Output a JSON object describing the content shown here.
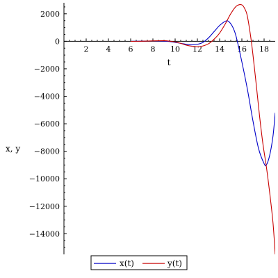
{
  "chart_data": {
    "type": "line",
    "title": "",
    "xlabel": "t",
    "ylabel": "x, y",
    "xlim": [
      0,
      19
    ],
    "ylim": [
      -15500,
      2800
    ],
    "x_ticks": [
      2,
      4,
      6,
      8,
      10,
      12,
      14,
      16,
      18
    ],
    "y_ticks": [
      2000,
      0,
      -2000,
      -4000,
      -6000,
      -8000,
      -10000,
      -12000,
      -14000
    ],
    "grid": false,
    "legend_position": "bottom-left",
    "series": [
      {
        "name": "x(t)",
        "color": "#0000c8",
        "points": [
          [
            6,
            0
          ],
          [
            7,
            10
          ],
          [
            8,
            25
          ],
          [
            9,
            10
          ],
          [
            9.5,
            -20
          ],
          [
            10,
            -80
          ],
          [
            10.5,
            -150
          ],
          [
            11,
            -220
          ],
          [
            11.5,
            -260
          ],
          [
            12,
            -220
          ],
          [
            12.5,
            -80
          ],
          [
            13,
            250
          ],
          [
            13.5,
            700
          ],
          [
            14,
            1150
          ],
          [
            14.5,
            1450
          ],
          [
            14.8,
            1450
          ],
          [
            15.2,
            1000
          ],
          [
            15.5,
            300
          ],
          [
            16,
            -1500
          ],
          [
            16.5,
            -3500
          ],
          [
            17,
            -5800
          ],
          [
            17.5,
            -7800
          ],
          [
            18,
            -8900
          ],
          [
            18.2,
            -9000
          ],
          [
            18.5,
            -8300
          ],
          [
            18.8,
            -6900
          ],
          [
            19,
            -5200
          ]
        ]
      },
      {
        "name": "y(t)",
        "color": "#c80000",
        "points": [
          [
            6,
            -5
          ],
          [
            7,
            5
          ],
          [
            8,
            30
          ],
          [
            9,
            40
          ],
          [
            9.5,
            10
          ],
          [
            10,
            -50
          ],
          [
            10.5,
            -150
          ],
          [
            11,
            -280
          ],
          [
            11.5,
            -360
          ],
          [
            12,
            -400
          ],
          [
            12.5,
            -340
          ],
          [
            13,
            -180
          ],
          [
            13.5,
            150
          ],
          [
            14,
            600
          ],
          [
            14.5,
            1250
          ],
          [
            15,
            2000
          ],
          [
            15.5,
            2550
          ],
          [
            16,
            2650
          ],
          [
            16.3,
            2300
          ],
          [
            16.5,
            1800
          ],
          [
            16.8,
            300
          ],
          [
            17,
            -1000
          ],
          [
            17.3,
            -3200
          ],
          [
            17.6,
            -5500
          ],
          [
            17.9,
            -7500
          ],
          [
            18.2,
            -9100
          ],
          [
            18.5,
            -11000
          ],
          [
            18.8,
            -13200
          ],
          [
            19,
            -15500
          ]
        ]
      }
    ]
  }
}
